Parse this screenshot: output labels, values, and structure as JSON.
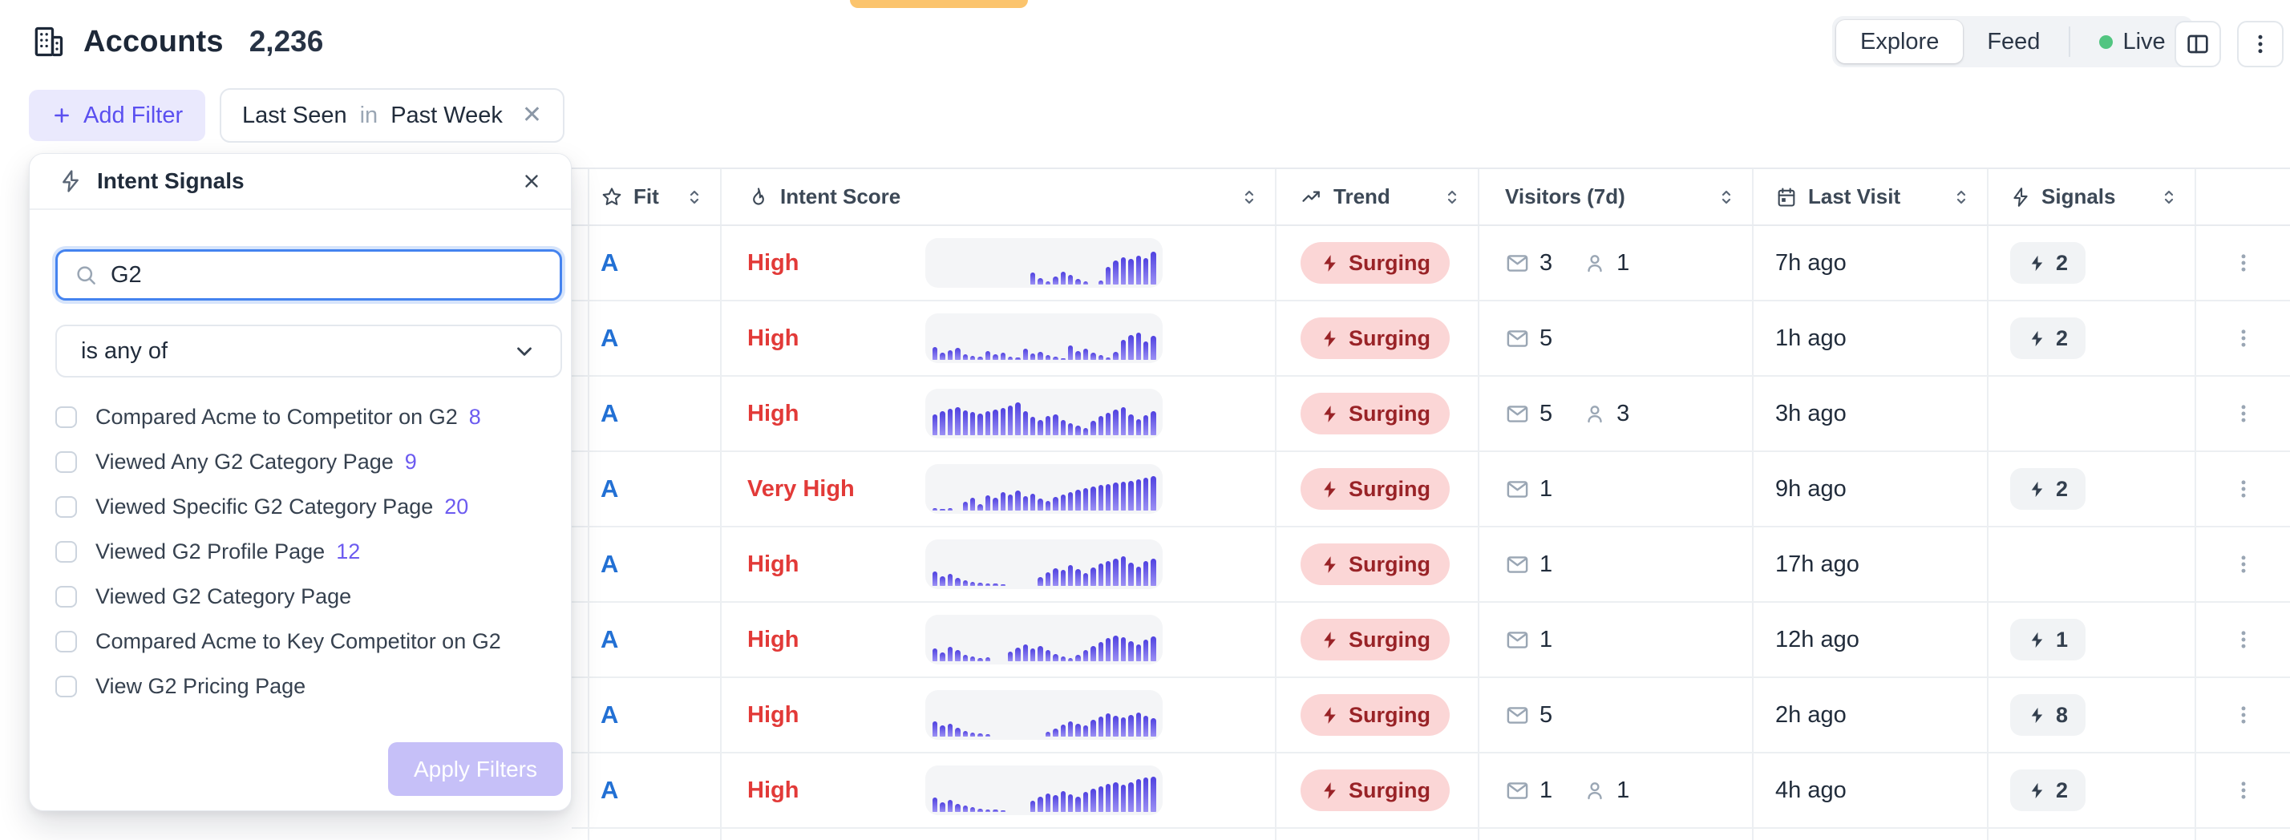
{
  "header": {
    "title": "Accounts",
    "count": "2,236",
    "tabs": [
      {
        "label": "Explore",
        "active": true
      },
      {
        "label": "Feed",
        "active": false
      },
      {
        "label": "Live",
        "active": false,
        "live_dot": true
      }
    ]
  },
  "filter_bar": {
    "add_label": "Add Filter",
    "chip": {
      "field": "Last Seen",
      "operator": "in",
      "value": "Past Week"
    }
  },
  "popover": {
    "title": "Intent Signals",
    "search_value": "G2",
    "operator": "is any of",
    "options": [
      {
        "label": "Compared Acme to Competitor on G2",
        "count": "8"
      },
      {
        "label": "Viewed Any G2 Category Page",
        "count": "9"
      },
      {
        "label": "Viewed Specific G2 Category Page",
        "count": "20"
      },
      {
        "label": "Viewed G2 Profile Page",
        "count": "12"
      },
      {
        "label": "Viewed G2 Category Page",
        "count": ""
      },
      {
        "label": "Compared Acme to Key Competitor on G2",
        "count": ""
      },
      {
        "label": "View G2 Pricing Page",
        "count": ""
      }
    ],
    "apply_label": "Apply Filters"
  },
  "table": {
    "columns": {
      "fit": "Fit",
      "intent": "Intent Score",
      "trend": "Trend",
      "visitors": "Visitors (7d)",
      "last_visit": "Last Visit",
      "signals": "Signals"
    },
    "rows": [
      {
        "fit": "A",
        "intent": "High",
        "trend": "Surging",
        "emails": "3",
        "people": "1",
        "last_visit": "7h ago",
        "signals": "2",
        "sparkline": [
          0,
          0,
          0,
          0,
          0,
          0,
          0,
          0,
          0,
          0,
          0,
          0,
          0,
          28,
          16,
          8,
          20,
          30,
          24,
          14,
          8,
          0,
          10,
          42,
          58,
          66,
          62,
          70,
          64,
          78
        ]
      },
      {
        "fit": "A",
        "intent": "High",
        "trend": "Surging",
        "emails": "5",
        "people": "",
        "last_visit": "1h ago",
        "signals": "2",
        "sparkline": [
          30,
          18,
          24,
          28,
          14,
          10,
          8,
          22,
          14,
          18,
          8,
          6,
          26,
          16,
          20,
          12,
          8,
          4,
          34,
          22,
          26,
          18,
          12,
          6,
          20,
          48,
          60,
          66,
          44,
          58
        ]
      },
      {
        "fit": "A",
        "intent": "High",
        "trend": "Surging",
        "emails": "5",
        "people": "3",
        "last_visit": "3h ago",
        "signals": "",
        "sparkline": [
          50,
          58,
          64,
          68,
          60,
          55,
          52,
          58,
          62,
          66,
          72,
          78,
          58,
          44,
          36,
          46,
          50,
          36,
          28,
          24,
          18,
          34,
          46,
          54,
          62,
          68,
          50,
          38,
          48,
          58
        ]
      },
      {
        "fit": "A",
        "intent": "Very High",
        "trend": "Surging",
        "emails": "1",
        "people": "",
        "last_visit": "9h ago",
        "signals": "2",
        "sparkline": [
          6,
          4,
          5,
          0,
          22,
          30,
          16,
          36,
          30,
          44,
          38,
          48,
          34,
          40,
          28,
          24,
          32,
          38,
          44,
          50,
          54,
          58,
          62,
          64,
          68,
          70,
          72,
          75,
          78,
          82
        ]
      },
      {
        "fit": "A",
        "intent": "High",
        "trend": "Surging",
        "emails": "1",
        "people": "",
        "last_visit": "17h ago",
        "signals": "",
        "sparkline": [
          34,
          24,
          28,
          20,
          14,
          10,
          8,
          6,
          5,
          4,
          0,
          0,
          0,
          0,
          22,
          32,
          42,
          38,
          50,
          40,
          30,
          44,
          54,
          60,
          66,
          72,
          56,
          46,
          60,
          66
        ]
      },
      {
        "fit": "A",
        "intent": "High",
        "trend": "Surging",
        "emails": "1",
        "people": "",
        "last_visit": "12h ago",
        "signals": "1",
        "sparkline": [
          30,
          22,
          34,
          26,
          16,
          12,
          8,
          10,
          0,
          0,
          24,
          32,
          40,
          30,
          36,
          26,
          18,
          12,
          8,
          16,
          26,
          36,
          46,
          56,
          62,
          58,
          48,
          40,
          52,
          60
        ]
      },
      {
        "fit": "A",
        "intent": "High",
        "trend": "Surging",
        "emails": "5",
        "people": "",
        "last_visit": "2h ago",
        "signals": "8",
        "sparkline": [
          36,
          26,
          30,
          22,
          14,
          10,
          8,
          5,
          0,
          0,
          0,
          0,
          0,
          0,
          0,
          12,
          20,
          28,
          36,
          30,
          26,
          40,
          48,
          56,
          50,
          46,
          52,
          58,
          50,
          44
        ]
      },
      {
        "fit": "A",
        "intent": "High",
        "trend": "Surging",
        "emails": "1",
        "people": "1",
        "last_visit": "4h ago",
        "signals": "2",
        "sparkline": [
          34,
          24,
          28,
          20,
          16,
          12,
          8,
          6,
          5,
          4,
          0,
          0,
          0,
          26,
          36,
          44,
          40,
          50,
          42,
          36,
          48,
          56,
          62,
          68,
          72,
          66,
          72,
          78,
          82,
          85
        ]
      }
    ]
  },
  "colors": {
    "accent_indigo": "#5a4ff0",
    "fit_blue": "#2270d4",
    "intent_red": "#e23a38",
    "surging_bg": "#fbd6d6",
    "surging_text": "#992327",
    "spark_bar": "#5b4de6",
    "live_green": "#52c581",
    "toast_orange": "#fbc46d"
  }
}
